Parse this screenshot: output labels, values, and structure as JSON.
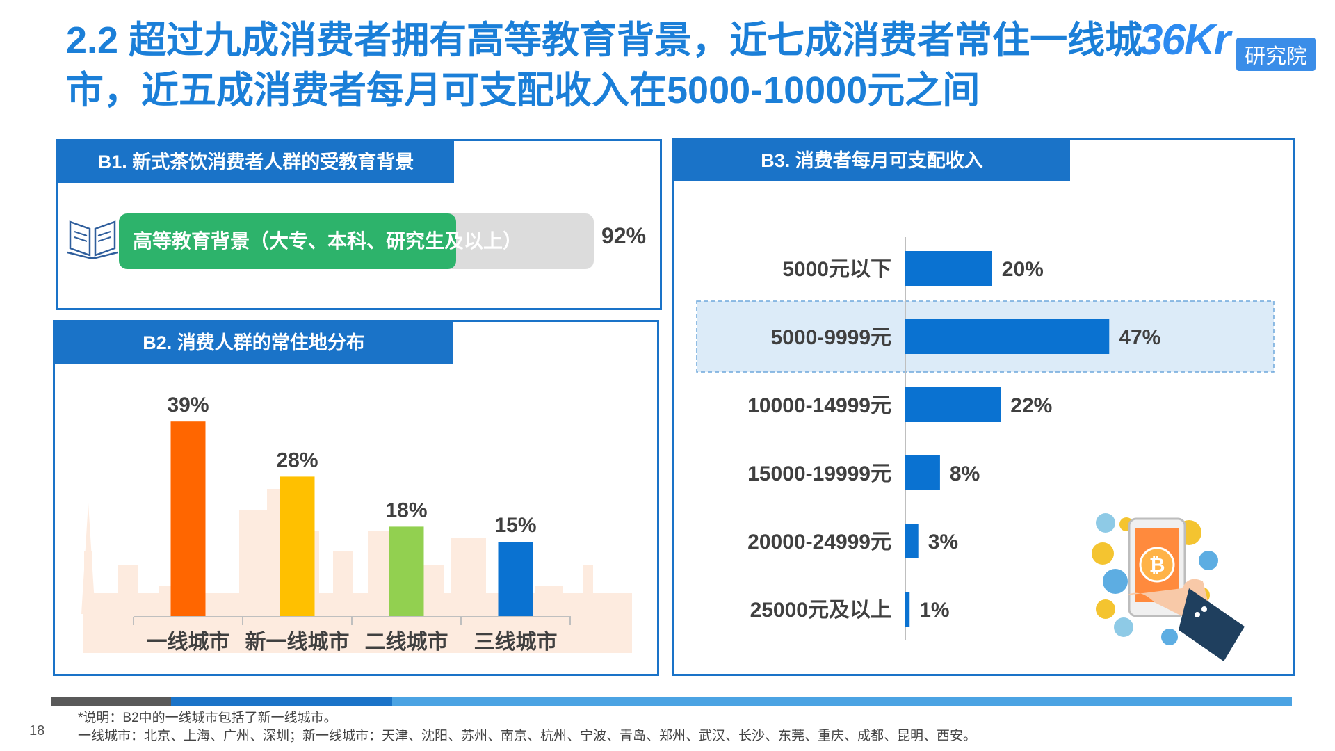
{
  "title": "2.2 超过九成消费者拥有高等教育背景，近七成消费者常住一线城市，近五成消费者每月可支配收入在5000-10000元之间",
  "logo": {
    "brand": "36Kr",
    "badge": "研究院"
  },
  "colors": {
    "accent": "#1A73C8",
    "edu_fill": "#2DB36B",
    "bar_blue": "#0A72D1",
    "city_colors": [
      "#FF6600",
      "#FFC000",
      "#92D050",
      "#0A72D1"
    ],
    "bottom_bar": [
      "#595959",
      "#1A73C8",
      "#4BA3E3"
    ]
  },
  "icons": {
    "book": "open-book-icon",
    "phone": "phone-coins-icon"
  },
  "panels": {
    "b1": {
      "title": "B1. 新式茶饮消费者人群的受教育背景"
    },
    "b2": {
      "title": "B2. 消费人群的常住地分布"
    },
    "b3": {
      "title": "B3. 消费者每月可支配收入"
    }
  },
  "chart_data": [
    {
      "type": "bar",
      "title": "B1. 新式茶饮消费者人群的受教育背景",
      "categories": [
        "高等教育背景（大专、本科、研究生及以上）"
      ],
      "values": [
        92
      ],
      "data_labels": [
        "92%"
      ],
      "ylim": [
        0,
        100
      ]
    },
    {
      "type": "bar",
      "title": "B2. 消费人群的常住地分布",
      "categories": [
        "一线城市",
        "新一线城市",
        "二线城市",
        "三线城市"
      ],
      "values": [
        39,
        28,
        18,
        15
      ],
      "data_labels": [
        "39%",
        "28%",
        "18%",
        "15%"
      ],
      "ylim": [
        0,
        45
      ]
    },
    {
      "type": "bar",
      "orientation": "horizontal",
      "title": "B3. 消费者每月可支配收入",
      "categories": [
        "5000元以下",
        "5000-9999元",
        "10000-14999元",
        "15000-19999元",
        "20000-24999元",
        "25000元及以上"
      ],
      "values": [
        20,
        47,
        22,
        8,
        3,
        1
      ],
      "data_labels": [
        "20%",
        "47%",
        "22%",
        "8%",
        "3%",
        "1%"
      ],
      "highlight": "5000-9999元",
      "xlim": [
        0,
        50
      ]
    }
  ],
  "footer": {
    "note_line1": "*说明：B2中的一线城市包括了新一线城市。",
    "note_line2": "一线城市：北京、上海、广州、深圳；新一线城市：天津、沈阳、苏州、南京、杭州、宁波、青岛、郑州、武汉、长沙、东莞、重庆、成都、昆明、西安。",
    "page": "18"
  }
}
